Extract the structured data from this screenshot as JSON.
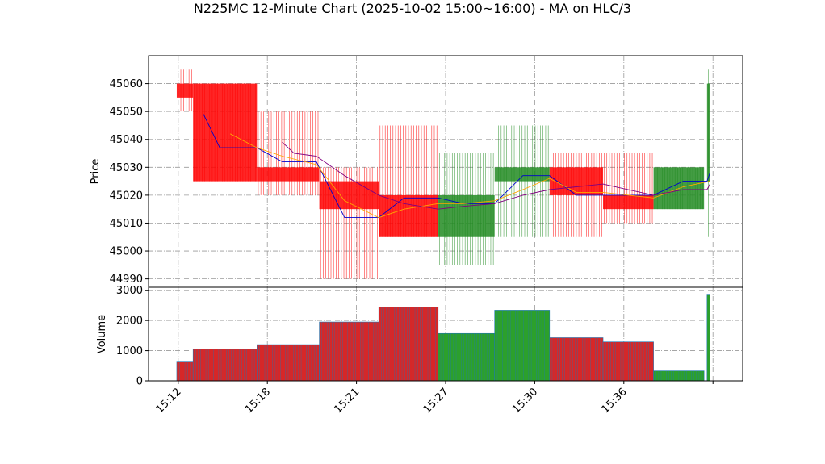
{
  "chart_data": {
    "type": "candlestick",
    "title": "N225MC 12-Minute Chart (2025-10-02 15:00~16:00) - MA on HLC/3",
    "price_panel": {
      "ylabel": "Price",
      "ylim": [
        44987,
        45070
      ],
      "yticks": [
        44990,
        45000,
        45010,
        45020,
        45030,
        45040,
        45050,
        45060
      ],
      "grid": true
    },
    "volume_panel": {
      "ylabel": "Volume",
      "ylim": [
        0,
        3100
      ],
      "yticks": [
        0,
        1000,
        2000,
        3000
      ],
      "grid": true
    },
    "xaxis": {
      "range": [
        -1.0,
        19.0
      ],
      "ticks": [
        {
          "x": 0.0,
          "label": "15:12"
        },
        {
          "x": 3.0,
          "label": "15:18"
        },
        {
          "x": 6.0,
          "label": "15:21"
        },
        {
          "x": 9.0,
          "label": "15:27"
        },
        {
          "x": 12.0,
          "label": "15:30"
        },
        {
          "x": 15.0,
          "label": "15:36"
        },
        {
          "x": 18.0,
          "label": ""
        }
      ]
    },
    "colors": {
      "up": "#228b22",
      "down": "#ff0000",
      "vol_up": "#2ca02c",
      "vol_down": "#d62728",
      "vol_edge": "#1f77b4",
      "ma_short": "#0000cd",
      "ma_mid": "#ffa500",
      "ma_long": "#800080",
      "grid": "#9a9a9a"
    },
    "candles": [
      {
        "x0": -0.05,
        "x1": 0.5,
        "open": 45060,
        "high": 45065,
        "low": 45050,
        "close": 45055
      },
      {
        "x0": 0.5,
        "x1": 2.65,
        "open": 45060,
        "high": 45060,
        "low": 45025,
        "close": 45025
      },
      {
        "x0": 2.65,
        "x1": 4.75,
        "open": 45030,
        "high": 45050,
        "low": 45020,
        "close": 45025
      },
      {
        "x0": 4.75,
        "x1": 6.75,
        "open": 45025,
        "high": 45030,
        "low": 44990,
        "close": 45015
      },
      {
        "x0": 6.75,
        "x1": 8.75,
        "open": 45020,
        "high": 45045,
        "low": 45005,
        "close": 45005
      },
      {
        "x0": 8.75,
        "x1": 10.65,
        "open": 45005,
        "high": 45035,
        "low": 44995,
        "close": 45020
      },
      {
        "x0": 10.65,
        "x1": 12.5,
        "open": 45025,
        "high": 45045,
        "low": 45005,
        "close": 45030
      },
      {
        "x0": 12.5,
        "x1": 14.3,
        "open": 45030,
        "high": 45035,
        "low": 45005,
        "close": 45020
      },
      {
        "x0": 14.3,
        "x1": 16.0,
        "open": 45020,
        "high": 45035,
        "low": 45010,
        "close": 45015
      },
      {
        "x0": 16.0,
        "x1": 17.7,
        "open": 45015,
        "high": 45030,
        "low": 45015,
        "close": 45030
      },
      {
        "x0": 17.8,
        "x1": 17.9,
        "open": 45025,
        "high": 45065,
        "low": 45005,
        "close": 45060
      }
    ],
    "volume": [
      {
        "x0": -0.05,
        "x1": 0.5,
        "value": 650,
        "dir": "down"
      },
      {
        "x0": 0.5,
        "x1": 2.65,
        "value": 1060,
        "dir": "down"
      },
      {
        "x0": 2.65,
        "x1": 4.75,
        "value": 1200,
        "dir": "down"
      },
      {
        "x0": 4.75,
        "x1": 6.75,
        "value": 1950,
        "dir": "down"
      },
      {
        "x0": 6.75,
        "x1": 8.75,
        "value": 2440,
        "dir": "down"
      },
      {
        "x0": 8.75,
        "x1": 10.65,
        "value": 1570,
        "dir": "up"
      },
      {
        "x0": 10.65,
        "x1": 12.5,
        "value": 2340,
        "dir": "up"
      },
      {
        "x0": 12.5,
        "x1": 14.3,
        "value": 1430,
        "dir": "down"
      },
      {
        "x0": 14.3,
        "x1": 16.0,
        "value": 1290,
        "dir": "down"
      },
      {
        "x0": 16.0,
        "x1": 17.7,
        "value": 330,
        "dir": "up"
      },
      {
        "x0": 17.8,
        "x1": 17.9,
        "value": 2870,
        "dir": "up"
      }
    ],
    "ma_lines": [
      {
        "key": "ma_short",
        "points": [
          [
            0.85,
            45049
          ],
          [
            1.4,
            45037
          ],
          [
            2.3,
            45037
          ],
          [
            2.65,
            45037
          ],
          [
            3.5,
            45032
          ],
          [
            4.65,
            45032
          ],
          [
            5.6,
            45012
          ],
          [
            6.75,
            45012
          ],
          [
            7.6,
            45019
          ],
          [
            8.75,
            45019
          ],
          [
            9.6,
            45017
          ],
          [
            10.65,
            45017
          ],
          [
            11.6,
            45027
          ],
          [
            12.5,
            45027
          ],
          [
            13.4,
            45020
          ],
          [
            14.3,
            45020
          ],
          [
            16.0,
            45020
          ],
          [
            17.0,
            45025
          ],
          [
            17.8,
            45025
          ],
          [
            17.9,
            45028
          ]
        ]
      },
      {
        "key": "ma_mid",
        "points": [
          [
            1.75,
            45042
          ],
          [
            2.65,
            45037
          ],
          [
            3.5,
            45034
          ],
          [
            4.65,
            45031
          ],
          [
            5.6,
            45018
          ],
          [
            6.75,
            45012
          ],
          [
            7.6,
            45015
          ],
          [
            8.75,
            45017
          ],
          [
            9.6,
            45017
          ],
          [
            10.65,
            45018
          ],
          [
            11.6,
            45022
          ],
          [
            12.5,
            45026
          ],
          [
            13.4,
            45021
          ],
          [
            14.3,
            45021
          ],
          [
            16.0,
            45019
          ],
          [
            17.0,
            45023
          ],
          [
            17.9,
            45025
          ]
        ]
      },
      {
        "key": "ma_long",
        "points": [
          [
            3.5,
            45039
          ],
          [
            3.9,
            45035
          ],
          [
            4.65,
            45034
          ],
          [
            5.6,
            45027
          ],
          [
            6.75,
            45020
          ],
          [
            7.6,
            45017
          ],
          [
            8.75,
            45015
          ],
          [
            9.6,
            45016
          ],
          [
            10.65,
            45017
          ],
          [
            11.6,
            45020
          ],
          [
            12.5,
            45022
          ],
          [
            13.4,
            45023
          ],
          [
            14.3,
            45024
          ],
          [
            16.0,
            45020
          ],
          [
            17.0,
            45022
          ],
          [
            17.8,
            45022
          ],
          [
            17.9,
            45024
          ]
        ]
      }
    ]
  }
}
